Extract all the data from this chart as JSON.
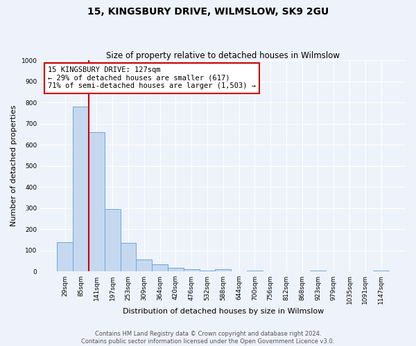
{
  "title": "15, KINGSBURY DRIVE, WILMSLOW, SK9 2GU",
  "subtitle": "Size of property relative to detached houses in Wilmslow",
  "xlabel": "Distribution of detached houses by size in Wilmslow",
  "ylabel": "Number of detached properties",
  "bar_labels": [
    "29sqm",
    "85sqm",
    "141sqm",
    "197sqm",
    "253sqm",
    "309sqm",
    "364sqm",
    "420sqm",
    "476sqm",
    "532sqm",
    "588sqm",
    "644sqm",
    "700sqm",
    "756sqm",
    "812sqm",
    "868sqm",
    "923sqm",
    "979sqm",
    "1035sqm",
    "1091sqm",
    "1147sqm"
  ],
  "bar_values": [
    140,
    780,
    660,
    295,
    135,
    57,
    33,
    17,
    12,
    5,
    12,
    0,
    5,
    0,
    0,
    0,
    5,
    0,
    0,
    0,
    5
  ],
  "bar_color": "#c5d8f0",
  "bar_edge_color": "#6aaad4",
  "vline_color": "#cc0000",
  "annotation_text": "15 KINGSBURY DRIVE: 127sqm\n← 29% of detached houses are smaller (617)\n71% of semi-detached houses are larger (1,503) →",
  "annotation_box_color": "#ffffff",
  "annotation_box_edge": "#cc0000",
  "ylim": [
    0,
    1000
  ],
  "yticks": [
    0,
    100,
    200,
    300,
    400,
    500,
    600,
    700,
    800,
    900,
    1000
  ],
  "footer_line1": "Contains HM Land Registry data © Crown copyright and database right 2024.",
  "footer_line2": "Contains public sector information licensed under the Open Government Licence v3.0.",
  "bg_color": "#eef2fa",
  "grid_color": "#ffffff",
  "title_fontsize": 10,
  "subtitle_fontsize": 8.5,
  "axis_label_fontsize": 8,
  "tick_fontsize": 6.5,
  "annotation_fontsize": 7.5,
  "footer_fontsize": 6
}
